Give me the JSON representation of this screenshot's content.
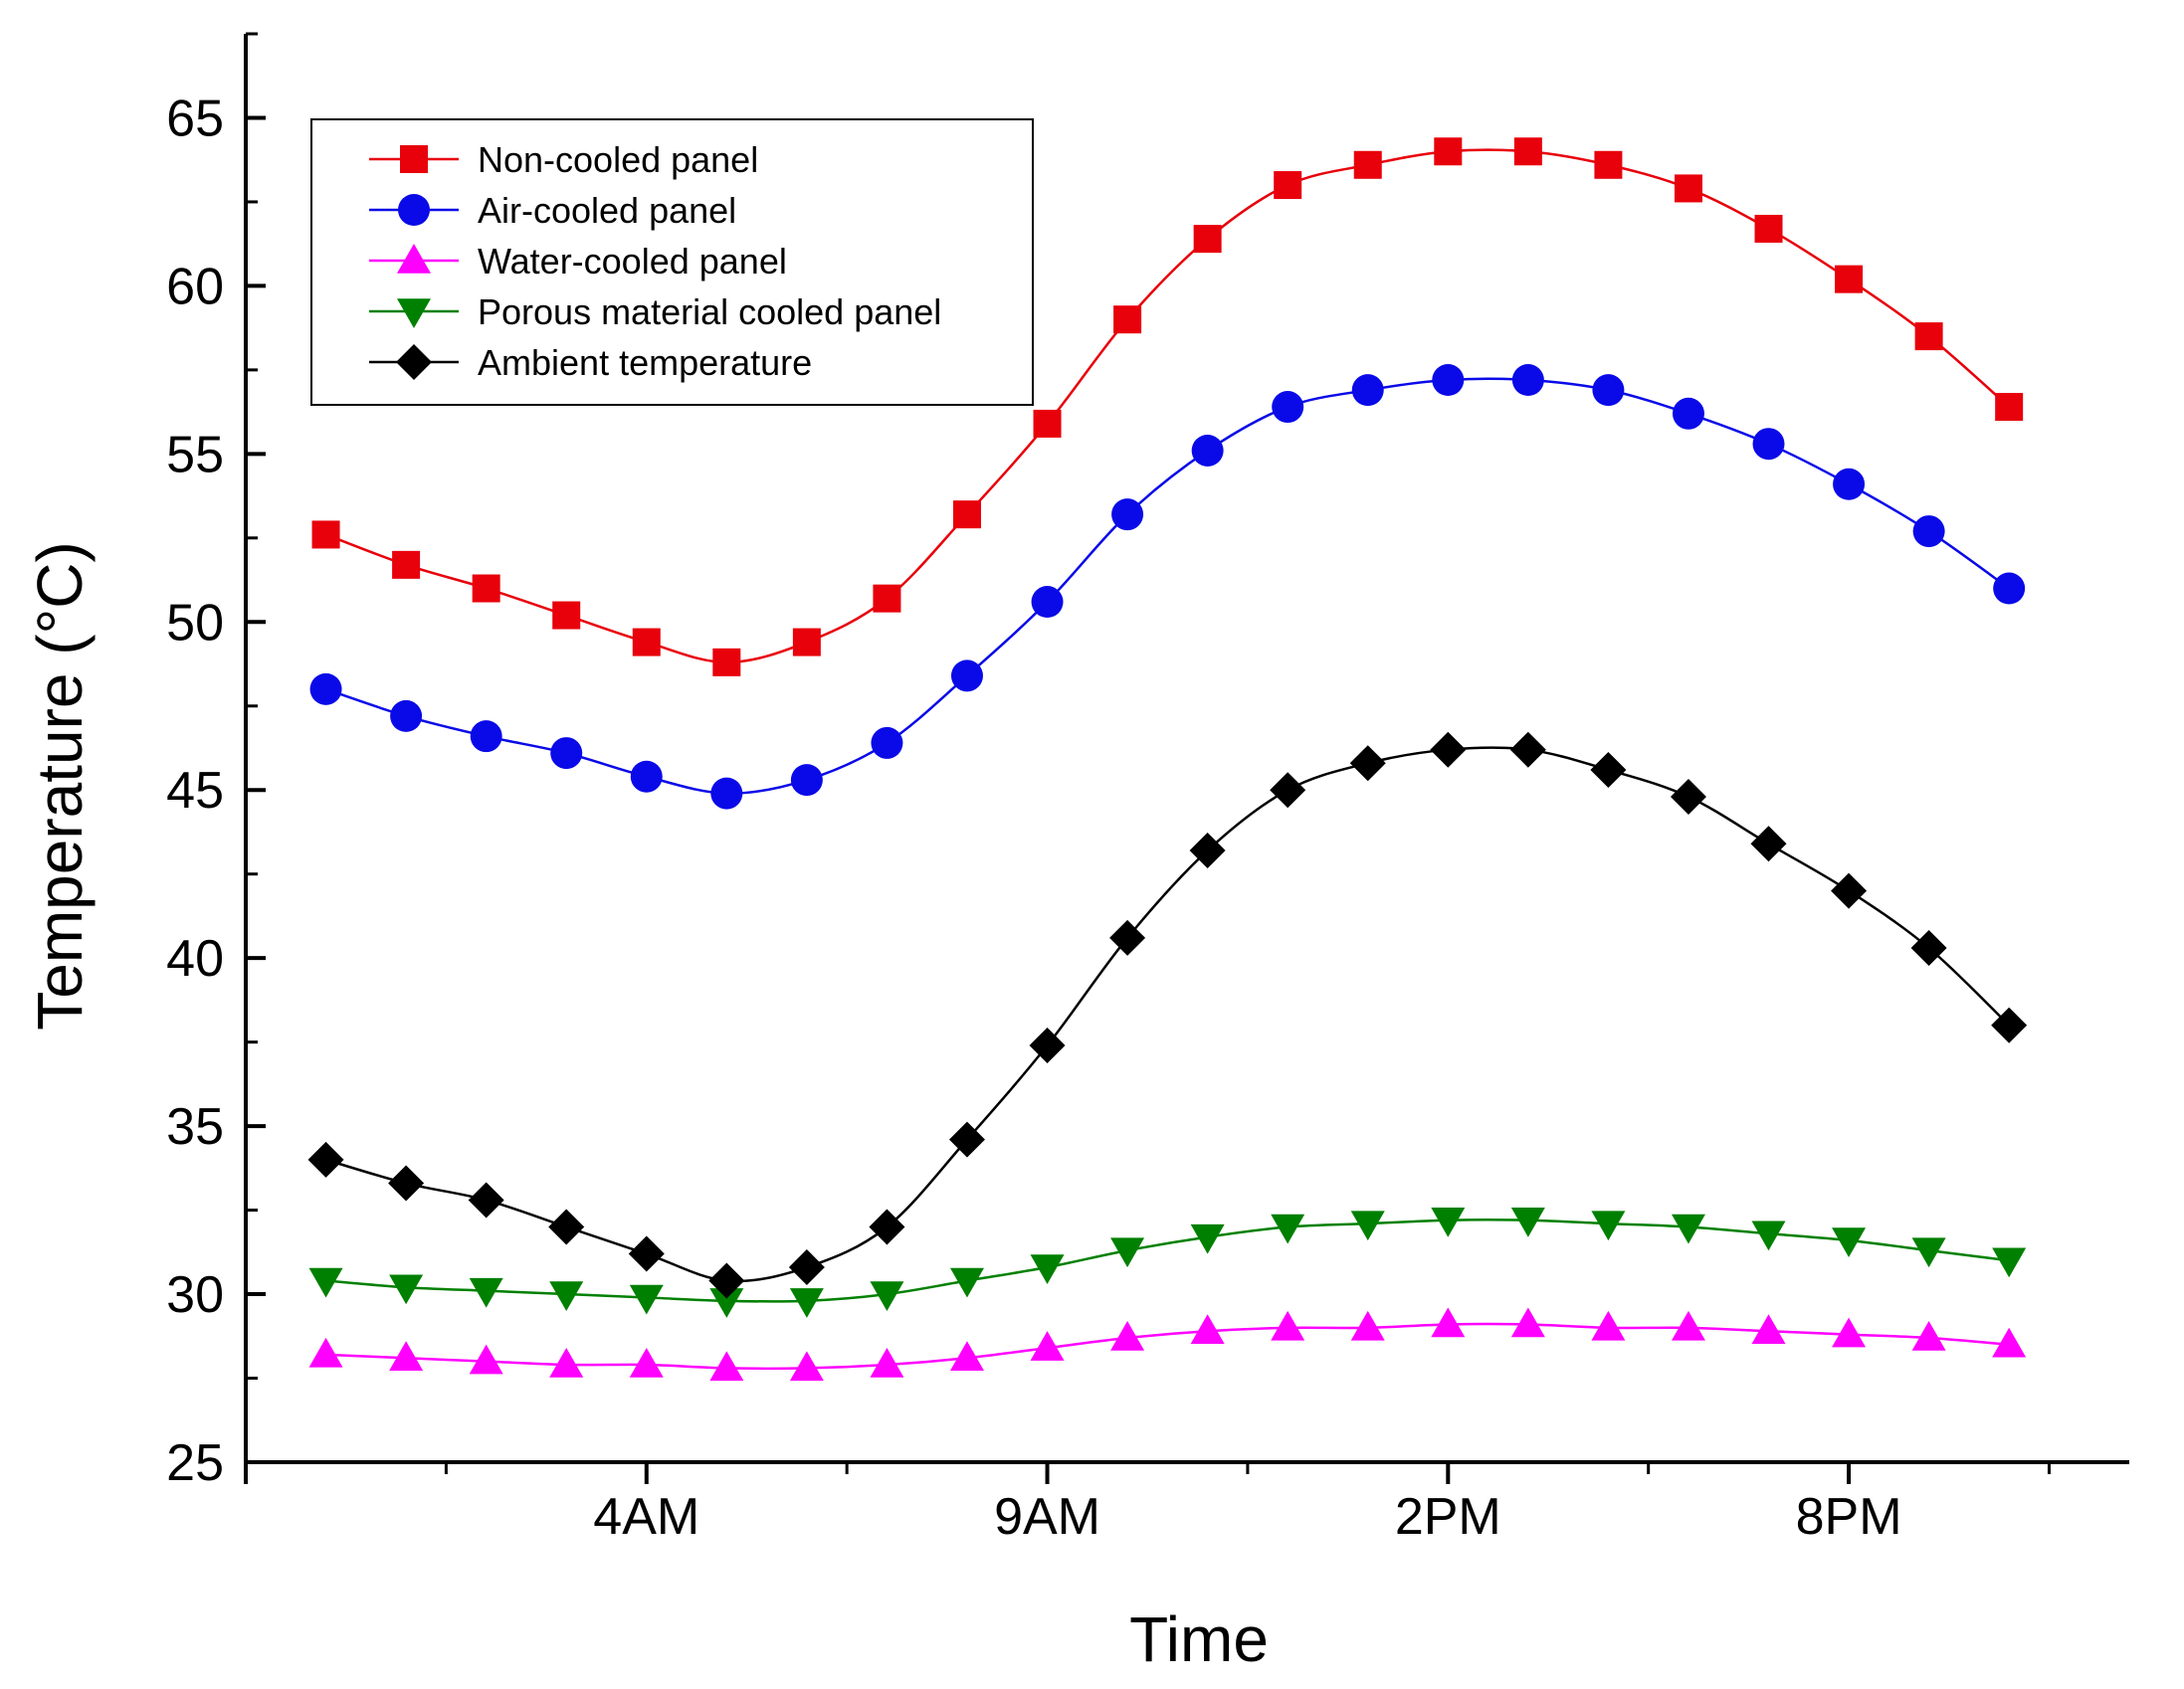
{
  "chart_data": {
    "type": "line",
    "title": "",
    "xlabel": "Time",
    "ylabel": "Temperature (°C)",
    "xlim": [
      -1,
      22.5
    ],
    "ylim": [
      25,
      67.5
    ],
    "x": [
      0,
      1,
      2,
      3,
      4,
      5,
      6,
      7,
      8,
      9,
      10,
      11,
      12,
      13,
      14,
      15,
      16,
      17,
      18,
      19,
      20,
      21
    ],
    "x_ticks": [
      -1,
      4,
      9,
      14,
      19
    ],
    "x_minor_ticks": [
      1.5,
      6.5,
      11.5,
      16.5,
      21.5
    ],
    "x_tick_labels": [
      {
        "x": 4,
        "label": "4AM"
      },
      {
        "x": 9,
        "label": "9AM"
      },
      {
        "x": 14,
        "label": "2PM"
      },
      {
        "x": 19,
        "label": "8PM"
      }
    ],
    "y_ticks": [
      25,
      30,
      35,
      40,
      45,
      50,
      55,
      60,
      65
    ],
    "y_minor_ticks": [
      27.5,
      32.5,
      37.5,
      42.5,
      47.5,
      52.5,
      57.5,
      62.5,
      67.5
    ],
    "grid": false,
    "legend_position": "top-left",
    "series": [
      {
        "name": "Non-cooled panel",
        "color": "#e8000b",
        "marker": "square",
        "values": [
          52.6,
          51.7,
          51.0,
          50.2,
          49.4,
          48.8,
          49.4,
          50.7,
          53.2,
          55.9,
          59.0,
          61.4,
          63.0,
          63.6,
          64.0,
          64.0,
          63.6,
          62.9,
          61.7,
          60.2,
          58.5,
          56.4
        ]
      },
      {
        "name": "Air-cooled panel",
        "color": "#0a0ae8",
        "marker": "circle",
        "values": [
          48.0,
          47.2,
          46.6,
          46.1,
          45.4,
          44.9,
          45.3,
          46.4,
          48.4,
          50.6,
          53.2,
          55.1,
          56.4,
          56.9,
          57.2,
          57.2,
          56.9,
          56.2,
          55.3,
          54.1,
          52.7,
          51.0
        ]
      },
      {
        "name": "Water-cooled panel",
        "color": "#ff00ff",
        "marker": "triangle-up",
        "values": [
          28.2,
          28.1,
          28.0,
          27.9,
          27.9,
          27.8,
          27.8,
          27.9,
          28.1,
          28.4,
          28.7,
          28.9,
          29.0,
          29.0,
          29.1,
          29.1,
          29.0,
          29.0,
          28.9,
          28.8,
          28.7,
          28.5
        ]
      },
      {
        "name": "Porous material cooled panel",
        "color": "#008000",
        "marker": "triangle-down",
        "values": [
          30.4,
          30.2,
          30.1,
          30.0,
          29.9,
          29.8,
          29.8,
          30.0,
          30.4,
          30.8,
          31.3,
          31.7,
          32.0,
          32.1,
          32.2,
          32.2,
          32.1,
          32.0,
          31.8,
          31.6,
          31.3,
          31.0
        ]
      },
      {
        "name": "Ambient temperature",
        "color": "#000000",
        "marker": "diamond",
        "values": [
          34.0,
          33.3,
          32.8,
          32.0,
          31.2,
          30.4,
          30.8,
          32.0,
          34.6,
          37.4,
          40.6,
          43.2,
          45.0,
          45.8,
          46.2,
          46.2,
          45.6,
          44.8,
          43.4,
          42.0,
          40.3,
          38.0
        ]
      }
    ]
  }
}
